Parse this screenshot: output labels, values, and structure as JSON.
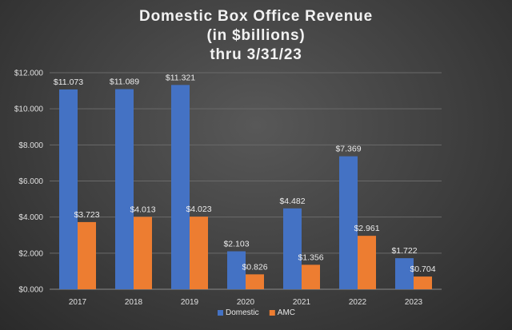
{
  "chart_data": {
    "type": "bar",
    "title_lines": [
      "Domestic Box Office Revenue",
      "(in $billions)",
      "thru 3/31/23"
    ],
    "categories": [
      "2017",
      "2018",
      "2019",
      "2020",
      "2021",
      "2022",
      "2023"
    ],
    "series": [
      {
        "name": "Domestic",
        "color": "#4472c4",
        "values": [
          11.073,
          11.089,
          11.321,
          2.103,
          4.482,
          7.369,
          1.722
        ],
        "labels": [
          "$11.073",
          "$11.089",
          "$11.321",
          "$2.103",
          "$4.482",
          "$7.369",
          "$1.722"
        ]
      },
      {
        "name": "AMC",
        "color": "#ed7d31",
        "values": [
          3.723,
          4.013,
          4.023,
          0.826,
          1.356,
          2.961,
          0.704
        ],
        "labels": [
          "$3.723",
          "$4.013",
          "$4.023",
          "$0.826",
          "$1.356",
          "$2.961",
          "$0.704"
        ]
      }
    ],
    "ylim": [
      0,
      12
    ],
    "y_ticks": [
      0,
      2,
      4,
      6,
      8,
      10,
      12
    ],
    "y_tick_labels": [
      "$0.000",
      "$2.000",
      "$4.000",
      "$6.000",
      "$8.000",
      "$10.000",
      "$12.000"
    ],
    "xlabel": "",
    "ylabel": "",
    "grid": true,
    "legend_position": "bottom"
  }
}
